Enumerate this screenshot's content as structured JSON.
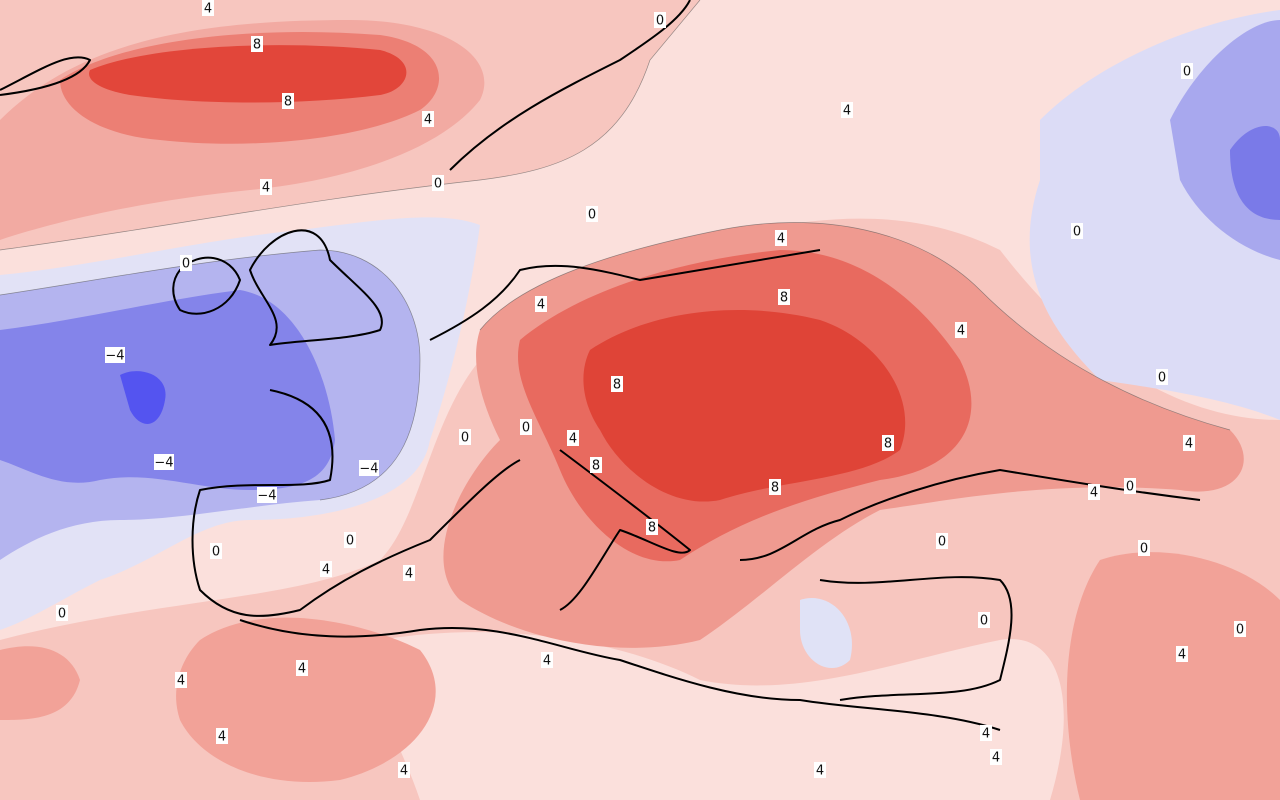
{
  "map": {
    "contour_labels": [
      "4",
      "8",
      "8",
      "4",
      "4",
      "0",
      "0",
      "0",
      "4",
      "0",
      "4",
      "0",
      "0",
      "4",
      "8",
      "4",
      "−4",
      "8",
      "0",
      "0",
      "0",
      "4",
      "8",
      "4",
      "−4",
      "8",
      "−4",
      "8",
      "4",
      "0",
      "−4",
      "8",
      "0",
      "0",
      "0",
      "0",
      "4",
      "4",
      "0",
      "0",
      "0",
      "4",
      "4",
      "4",
      "4",
      "4",
      "4",
      "4",
      "4",
      "4"
    ]
  }
}
